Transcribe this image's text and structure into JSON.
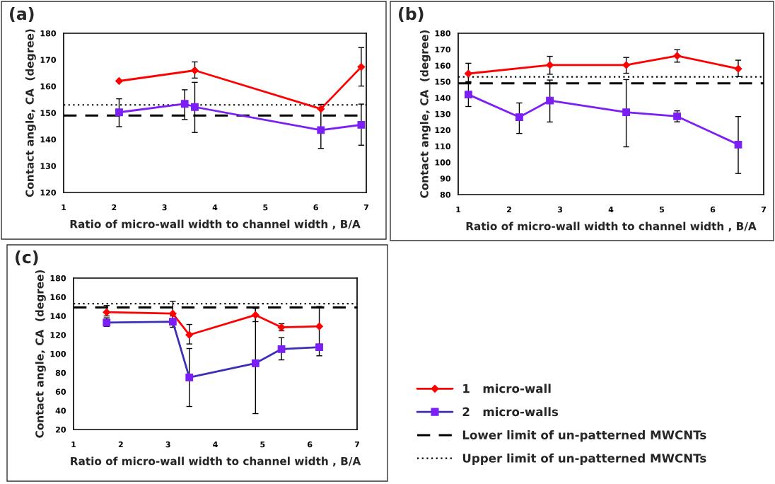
{
  "chart_data": [
    {
      "type": "line",
      "title": "(a)",
      "xlabel": "Ratio of micro-wall width to channel width , B/A",
      "ylabel": "Contact angle, CA  (degree)",
      "xlim": [
        1,
        7
      ],
      "xticks": [
        1,
        2,
        3,
        4,
        5,
        6,
        7
      ],
      "ylim": [
        120,
        180
      ],
      "yticks": [
        120,
        130,
        140,
        150,
        160,
        170,
        180
      ],
      "grid": false,
      "legend": false,
      "series": [
        {
          "color": "#ff0000",
          "marker": "diamond",
          "x": [
            2.1,
            3.6,
            6.1,
            6.9
          ],
          "values": [
            162,
            166,
            151.5,
            167.3
          ],
          "errors": [
            null,
            [
              163.1,
              169.2
            ],
            null,
            [
              160.1,
              174.6
            ]
          ]
        },
        {
          "color": "#7b1ff5",
          "marker": "square",
          "x": [
            2.1,
            3.4,
            3.6,
            6.1,
            6.9
          ],
          "values": [
            150.2,
            153.4,
            152.2,
            143.5,
            145.5
          ],
          "errors": [
            [
              144.8,
              155.3
            ],
            [
              147.5,
              158.7
            ],
            [
              142.6,
              161.5
            ],
            [
              136.6,
              153.2
            ],
            [
              137.8,
              153.3
            ]
          ]
        }
      ],
      "ref_lines": [
        {
          "axis": "y",
          "value": 149,
          "line_style": "dashed"
        },
        {
          "axis": "y",
          "value": 153,
          "line_style": "dotted"
        }
      ]
    },
    {
      "type": "line",
      "title": "(b)",
      "xlabel": "Ratio of micro-wall width to channel width , B/A",
      "ylabel": "Contact angle, CA  (degree)",
      "xlim": [
        1,
        7
      ],
      "xticks": [
        1,
        2,
        3,
        4,
        5,
        6,
        7
      ],
      "ylim": [
        80,
        180
      ],
      "yticks": [
        80,
        90,
        100,
        110,
        120,
        130,
        140,
        150,
        160,
        170,
        180
      ],
      "grid": false,
      "legend": false,
      "series": [
        {
          "color": "#ff0000",
          "marker": "diamond",
          "x": [
            1.2,
            2.8,
            4.3,
            5.3,
            6.5
          ],
          "values": [
            155,
            160.3,
            160.3,
            166,
            158
          ],
          "errors": [
            [
              150,
              161.4
            ],
            [
              154.6,
              165.7
            ],
            [
              155.2,
              165
            ],
            [
              162.1,
              169.8
            ],
            [
              153.1,
              163.3
            ]
          ]
        },
        {
          "color": "#7b1ff5",
          "marker": "square",
          "x": [
            1.2,
            2.2,
            2.8,
            4.3,
            5.3,
            6.5
          ],
          "values": [
            142,
            128,
            138.3,
            131,
            128.5,
            111
          ],
          "errors": [
            [
              134.6,
              149.5
            ],
            [
              117.9,
              136.8
            ],
            [
              125,
              151
            ],
            [
              109.6,
              151.3
            ],
            [
              125.1,
              131.9
            ],
            [
              93.1,
              128.4
            ]
          ]
        }
      ],
      "ref_lines": [
        {
          "axis": "y",
          "value": 149,
          "line_style": "dashed"
        },
        {
          "axis": "y",
          "value": 153,
          "line_style": "dotted"
        }
      ]
    },
    {
      "type": "line",
      "title": "(c)",
      "xlabel": "Ratio of micro-wall width to channel width , B/A",
      "ylabel": "Contact angle, CA  (degree)",
      "xlim": [
        1,
        7
      ],
      "xticks": [
        1,
        2,
        3,
        4,
        5,
        6,
        7
      ],
      "ylim": [
        20,
        180
      ],
      "yticks": [
        20,
        40,
        60,
        80,
        100,
        120,
        140,
        160,
        180
      ],
      "grid": false,
      "legend": "right",
      "series": [
        {
          "name": "1   micro-wall",
          "color": "#ff0000",
          "marker": "diamond",
          "x": [
            1.7,
            3.1,
            3.45,
            4.85,
            5.4,
            6.2
          ],
          "values": [
            144,
            142.5,
            120,
            141,
            128,
            129
          ],
          "errors": [
            [
              140,
              151
            ],
            [
              136,
              155.4
            ],
            [
              110.4,
              131
            ],
            [
              134,
              148
            ],
            [
              124.3,
              131.8
            ],
            null
          ]
        },
        {
          "name": "2   micro-walls",
          "color": "#3d2fb8",
          "marker": "square",
          "x": [
            1.7,
            3.1,
            3.45,
            4.85,
            5.4,
            6.2
          ],
          "values": [
            133,
            134,
            75,
            90,
            105,
            107
          ],
          "errors": [
            [
              129,
              138
            ],
            [
              128,
              140
            ],
            [
              44.3,
              105.6
            ],
            [
              36.8,
              149.2
            ],
            [
              93.6,
              117.1
            ],
            [
              97.9,
              150
            ]
          ]
        }
      ],
      "ref_lines": [
        {
          "axis": "y",
          "value": 149,
          "line_style": "dashed",
          "label": "Lower limit of un-patterned MWCNTs"
        },
        {
          "axis": "y",
          "value": 153,
          "line_style": "dotted",
          "label": "Upper limit of un-patterned MWCNTs"
        }
      ]
    }
  ]
}
